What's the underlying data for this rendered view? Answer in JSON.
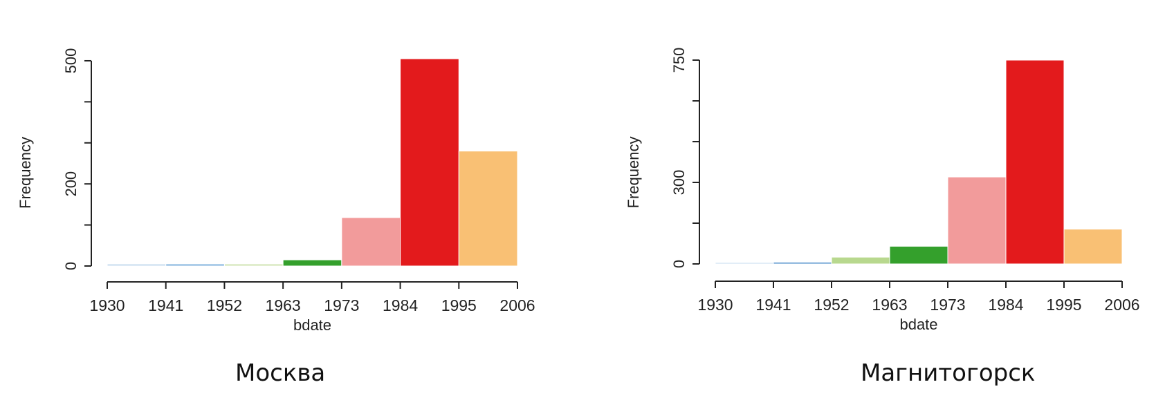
{
  "chart_data": [
    {
      "type": "histogram",
      "caption": "Москва",
      "xlabel": "bdate",
      "ylabel": "Frequency",
      "x_ticks": [
        "1930",
        "1941",
        "1952",
        "1963",
        "1973",
        "1984",
        "1995",
        "2006"
      ],
      "bins": [
        {
          "from": 1930,
          "to": 1941,
          "value": 5,
          "color": "#c6dbef"
        },
        {
          "from": 1941,
          "to": 1952,
          "value": 5,
          "color": "#7fb2de"
        },
        {
          "from": 1952,
          "to": 1963,
          "value": 5,
          "color": "#cfe3b2"
        },
        {
          "from": 1963,
          "to": 1973,
          "value": 15,
          "color": "#34a02c"
        },
        {
          "from": 1973,
          "to": 1984,
          "value": 118,
          "color": "#f29b9b"
        },
        {
          "from": 1984,
          "to": 1995,
          "value": 505,
          "color": "#e31a1c"
        },
        {
          "from": 1995,
          "to": 2006,
          "value": 280,
          "color": "#f9c074"
        }
      ],
      "y_ticks": [
        0,
        100,
        200,
        300,
        400,
        500
      ],
      "y_tick_labels": [
        "0",
        "",
        "200",
        "",
        "",
        "500"
      ],
      "ylim": [
        0,
        505
      ]
    },
    {
      "type": "histogram",
      "caption": "Магнитогорск",
      "xlabel": "bdate",
      "ylabel": "Frequency",
      "x_ticks": [
        "1930",
        "1941",
        "1952",
        "1963",
        "1973",
        "1984",
        "1995",
        "2006"
      ],
      "bins": [
        {
          "from": 1930,
          "to": 1941,
          "value": 5,
          "color": "#c6dbef"
        },
        {
          "from": 1941,
          "to": 1952,
          "value": 6,
          "color": "#3f84c6"
        },
        {
          "from": 1952,
          "to": 1963,
          "value": 25,
          "color": "#b8d88e"
        },
        {
          "from": 1963,
          "to": 1973,
          "value": 65,
          "color": "#34a02c"
        },
        {
          "from": 1973,
          "to": 1984,
          "value": 320,
          "color": "#f29b9b"
        },
        {
          "from": 1984,
          "to": 1995,
          "value": 750,
          "color": "#e31a1c"
        },
        {
          "from": 1995,
          "to": 2006,
          "value": 128,
          "color": "#f9c074"
        }
      ],
      "y_ticks": [
        0,
        150,
        300,
        450,
        600,
        750
      ],
      "y_tick_labels": [
        "0",
        "",
        "300",
        "",
        "",
        "750"
      ],
      "ylim": [
        0,
        750
      ]
    }
  ]
}
